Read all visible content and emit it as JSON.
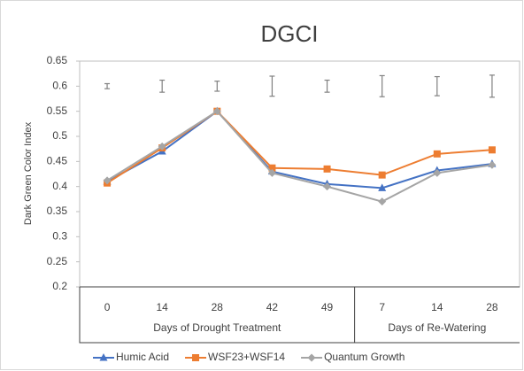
{
  "chart_data": {
    "type": "line",
    "title": "DGCI",
    "y_label": "Dark Green Color Index",
    "categories": [
      "0",
      "14",
      "28",
      "42",
      "49",
      "7",
      "14",
      "28"
    ],
    "category_groups": [
      {
        "label": "Days of Drought Treatment",
        "count": 5
      },
      {
        "label": "Days of Re-Watering",
        "count": 3
      }
    ],
    "series": [
      {
        "name": "Humic Acid",
        "color": "#4472c4",
        "marker": "triangle",
        "values": [
          0.41,
          0.47,
          0.55,
          0.43,
          0.405,
          0.397,
          0.432,
          0.445
        ]
      },
      {
        "name": "WSF23+WSF14",
        "color": "#ed7d31",
        "marker": "square",
        "values": [
          0.407,
          0.477,
          0.55,
          0.437,
          0.435,
          0.423,
          0.465,
          0.473
        ]
      },
      {
        "name": "Quantum Growth",
        "color": "#a5a5a5",
        "marker": "diamond",
        "values": [
          0.412,
          0.48,
          0.55,
          0.427,
          0.4,
          0.37,
          0.427,
          0.443
        ]
      }
    ],
    "error_bars": {
      "color": "#808080",
      "values": [
        0.6,
        0.6,
        0.6,
        0.6,
        0.6,
        0.6,
        0.6,
        0.6
      ],
      "errors": [
        0.005,
        0.012,
        0.01,
        0.02,
        0.012,
        0.021,
        0.019,
        0.022
      ]
    },
    "ylim": [
      0.2,
      0.65
    ],
    "yticks": [
      0.2,
      0.25,
      0.3,
      0.35,
      0.4,
      0.45,
      0.5,
      0.55,
      0.6,
      0.65
    ],
    "grid": false,
    "legend": "bottom"
  }
}
